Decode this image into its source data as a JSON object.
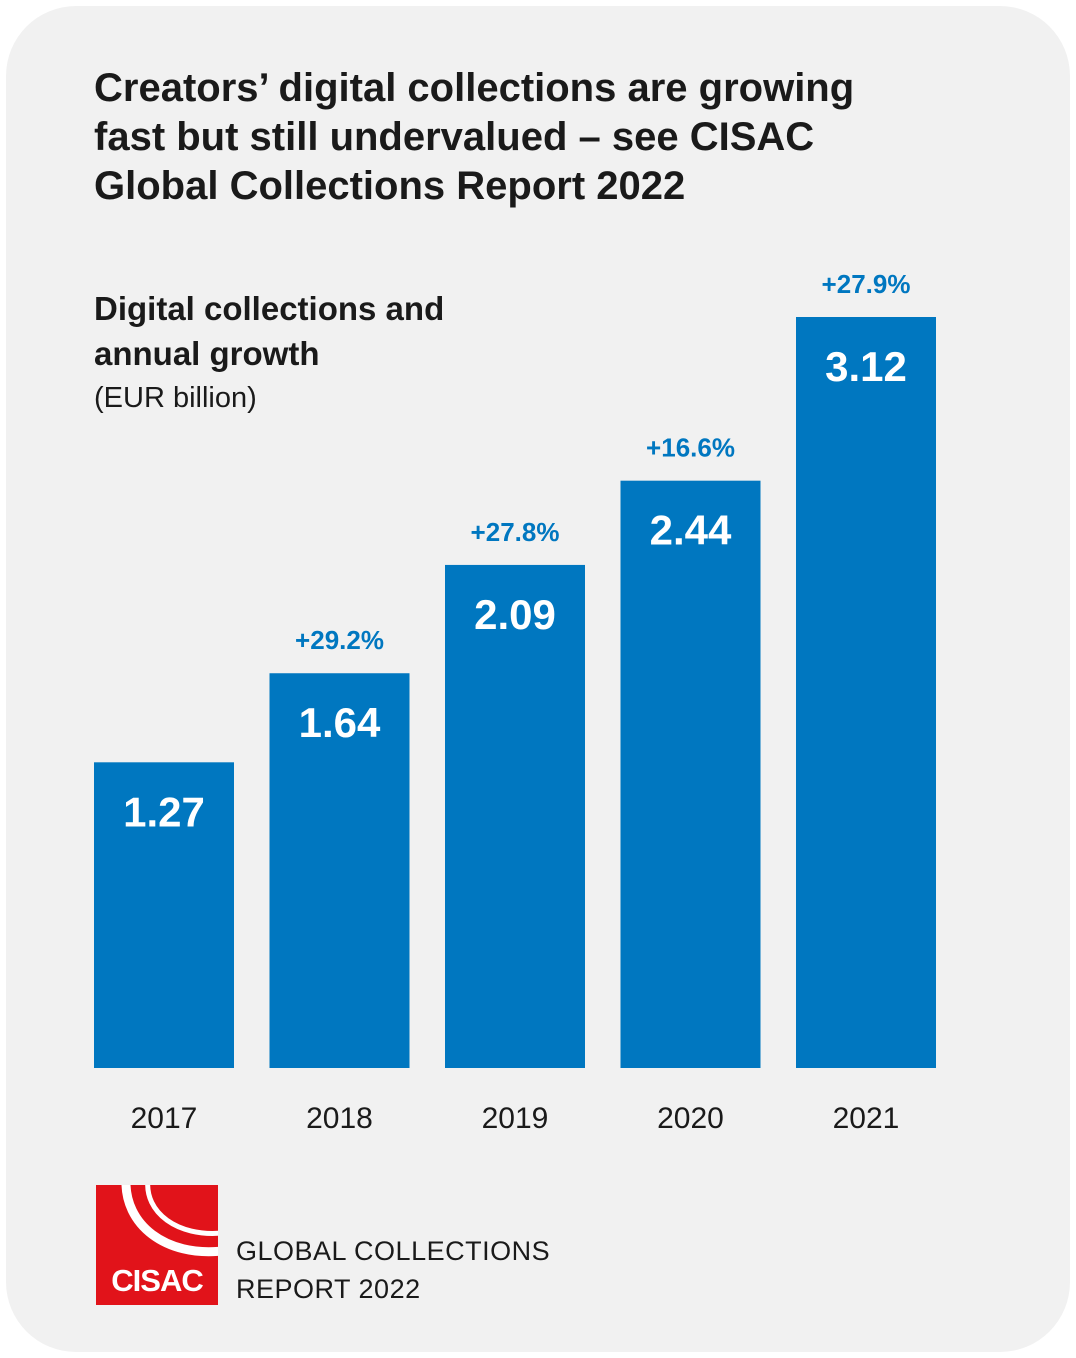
{
  "headline": {
    "line1": "Creators’ digital collections are growing",
    "line2": "fast but still undervalued – see CISAC",
    "line3": "Global Collections Report 2022"
  },
  "colors": {
    "bar": "#0077c0",
    "growth_label": "#0077c0",
    "background": "#f1f1f1",
    "logo": "#e1131a"
  },
  "chart_data": {
    "type": "bar",
    "title": "Digital collections and annual growth",
    "title_lines": [
      "Digital collections and",
      "annual growth"
    ],
    "unit": "(EUR billion)",
    "categories": [
      "2017",
      "2018",
      "2019",
      "2020",
      "2021"
    ],
    "values": [
      1.27,
      1.64,
      2.09,
      2.44,
      3.12
    ],
    "value_labels": [
      "1.27",
      "1.64",
      "2.09",
      "2.44",
      "3.12"
    ],
    "growth_labels": [
      "",
      "+29.2%",
      "+27.8%",
      "+16.6%",
      "+27.9%"
    ],
    "ylim": [
      0,
      3.12
    ],
    "grid": false,
    "legend": "none"
  },
  "footer": {
    "logo_text": "CISAC",
    "report_line1": "GLOBAL COLLECTIONS",
    "report_line2": "REPORT 2022"
  }
}
